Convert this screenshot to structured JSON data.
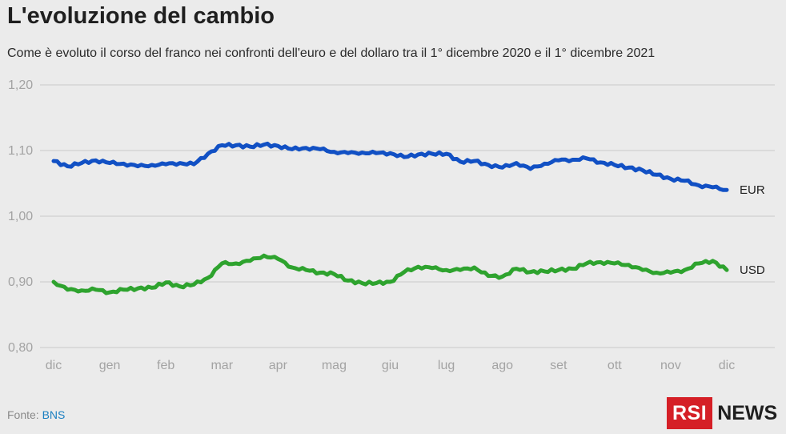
{
  "title": "L'evoluzione del cambio",
  "subtitle": "Come è evoluto il corso del franco nei confronti dell'euro e del dollaro tra il 1° dicembre 2020 e il 1° dicembre 2021",
  "source": {
    "prefix": "Fonte: ",
    "name": "BNS"
  },
  "logo": {
    "brand": "RSI",
    "product": "NEWS",
    "brand_color": "#d51f26"
  },
  "chart_data": {
    "type": "line",
    "title": "L'evoluzione del cambio",
    "xlabel": "",
    "ylabel": "",
    "ylim": [
      0.8,
      1.2
    ],
    "y_ticks": [
      "0,80",
      "0,90",
      "1,00",
      "1,10",
      "1,20"
    ],
    "x_ticks": [
      "dic",
      "gen",
      "feb",
      "mar",
      "apr",
      "mag",
      "giu",
      "lug",
      "ago",
      "set",
      "ott",
      "nov",
      "dic"
    ],
    "grid": "horizontal",
    "legend": "inline labels at line ends",
    "x": [
      0,
      0.25,
      0.5,
      0.75,
      1,
      1.25,
      1.5,
      1.75,
      2,
      2.25,
      2.5,
      2.75,
      3,
      3.25,
      3.5,
      3.75,
      4,
      4.25,
      4.5,
      4.75,
      5,
      5.25,
      5.5,
      5.75,
      6,
      6.25,
      6.5,
      6.75,
      7,
      7.25,
      7.5,
      7.75,
      8,
      8.25,
      8.5,
      8.75,
      9,
      9.25,
      9.5,
      9.75,
      10,
      10.25,
      10.5,
      10.75,
      11,
      11.25,
      11.5,
      11.75,
      12
    ],
    "series": [
      {
        "name": "EUR",
        "color": "#1150c4",
        "values": [
          1.084,
          1.076,
          1.081,
          1.085,
          1.081,
          1.08,
          1.076,
          1.078,
          1.079,
          1.081,
          1.079,
          1.095,
          1.108,
          1.108,
          1.106,
          1.109,
          1.107,
          1.102,
          1.104,
          1.102,
          1.098,
          1.096,
          1.097,
          1.096,
          1.096,
          1.09,
          1.094,
          1.095,
          1.095,
          1.083,
          1.084,
          1.078,
          1.074,
          1.081,
          1.072,
          1.08,
          1.085,
          1.086,
          1.088,
          1.082,
          1.078,
          1.074,
          1.07,
          1.063,
          1.057,
          1.054,
          1.047,
          1.044,
          1.04
        ]
      },
      {
        "name": "USD",
        "color": "#2ea32e",
        "values": [
          0.9,
          0.888,
          0.887,
          0.888,
          0.884,
          0.888,
          0.89,
          0.891,
          0.899,
          0.893,
          0.896,
          0.906,
          0.928,
          0.928,
          0.932,
          0.94,
          0.935,
          0.922,
          0.918,
          0.914,
          0.912,
          0.902,
          0.898,
          0.898,
          0.9,
          0.915,
          0.923,
          0.921,
          0.918,
          0.918,
          0.922,
          0.909,
          0.908,
          0.92,
          0.915,
          0.916,
          0.918,
          0.92,
          0.928,
          0.93,
          0.928,
          0.926,
          0.918,
          0.914,
          0.914,
          0.918,
          0.928,
          0.932,
          0.918
        ]
      }
    ]
  }
}
